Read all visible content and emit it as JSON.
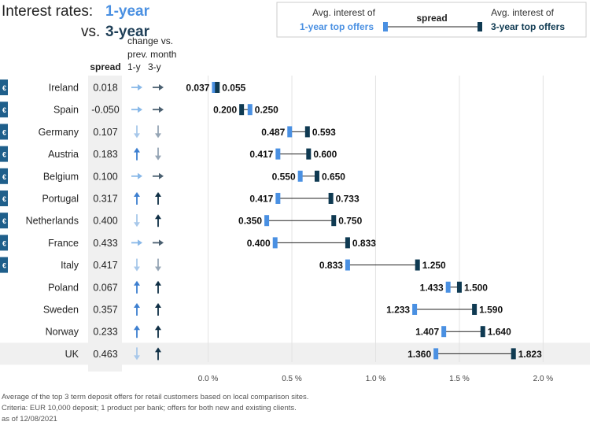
{
  "title": {
    "part1": "Interest rates: ",
    "part2": "1-year",
    "part3": "vs. ",
    "part4": "3-year"
  },
  "legend": {
    "left_line1": "Avg. interest of",
    "left_line2": "1-year top offers",
    "middle": "spread",
    "right_line1": "Avg. interest of",
    "right_line2": "3-year top offers"
  },
  "headers": {
    "spread": "spread",
    "change_line1": "change vs.",
    "change_line2": "prev. month",
    "col_1y": "1-y",
    "col_3y": "3-y"
  },
  "euro_symbol": "€",
  "colors": {
    "one_year": "#4a90e2",
    "three_year": "#0f3a52",
    "title_one_year": "#4a90e2",
    "title_three_year": "#1f3f57",
    "spread_col_bg": "#f0f0f0",
    "uk_row_bg": "#f0f0f0",
    "euro_badge": "#1f5f8b",
    "arrow_down": "#a8c8ea",
    "arrow_right_1y": "#88b8e8",
    "arrow_right_3y": "#4a5f70",
    "arrow_up_1y": "#3d7fd0",
    "arrow_up_3y": "#0f2f45",
    "arrow_down_3y": "#95a5b5",
    "spread_line": "#222222",
    "grid": "#e3e3e3"
  },
  "chart_data": {
    "type": "dumbbell",
    "xlim": [
      -0.012,
      2.2
    ],
    "ticks": [
      0.0,
      0.5,
      1.0,
      1.5,
      2.0
    ],
    "tick_labels": [
      "0.0 %",
      "0.5 %",
      "1.0 %",
      "1.5 %",
      "2.0 %"
    ],
    "series": [
      "1-year top offers",
      "3-year top offers"
    ],
    "rows": [
      {
        "country": "Ireland",
        "euro": true,
        "spread": "0.018",
        "one_year": 0.037,
        "three_year": 0.055,
        "one_year_label": "0.037",
        "three_year_label": "0.055",
        "change_1y": "right",
        "change_3y": "right"
      },
      {
        "country": "Spain",
        "euro": true,
        "spread": "-0.050",
        "one_year": 0.25,
        "three_year": 0.2,
        "one_year_label": "0.250",
        "three_year_label": "0.200",
        "change_1y": "right",
        "change_3y": "right"
      },
      {
        "country": "Germany",
        "euro": true,
        "spread": "0.107",
        "one_year": 0.487,
        "three_year": 0.593,
        "one_year_label": "0.487",
        "three_year_label": "0.593",
        "change_1y": "down",
        "change_3y": "down"
      },
      {
        "country": "Austria",
        "euro": true,
        "spread": "0.183",
        "one_year": 0.417,
        "three_year": 0.6,
        "one_year_label": "0.417",
        "three_year_label": "0.600",
        "change_1y": "up",
        "change_3y": "down"
      },
      {
        "country": "Belgium",
        "euro": true,
        "spread": "0.100",
        "one_year": 0.55,
        "three_year": 0.65,
        "one_year_label": "0.550",
        "three_year_label": "0.650",
        "change_1y": "right",
        "change_3y": "right"
      },
      {
        "country": "Portugal",
        "euro": true,
        "spread": "0.317",
        "one_year": 0.417,
        "three_year": 0.733,
        "one_year_label": "0.417",
        "three_year_label": "0.733",
        "change_1y": "up",
        "change_3y": "up"
      },
      {
        "country": "Netherlands",
        "euro": true,
        "spread": "0.400",
        "one_year": 0.35,
        "three_year": 0.75,
        "one_year_label": "0.350",
        "three_year_label": "0.750",
        "change_1y": "down",
        "change_3y": "up"
      },
      {
        "country": "France",
        "euro": true,
        "spread": "0.433",
        "one_year": 0.4,
        "three_year": 0.833,
        "one_year_label": "0.400",
        "three_year_label": "0.833",
        "change_1y": "right",
        "change_3y": "right"
      },
      {
        "country": "Italy",
        "euro": true,
        "spread": "0.417",
        "one_year": 0.833,
        "three_year": 1.25,
        "one_year_label": "0.833",
        "three_year_label": "1.250",
        "change_1y": "down",
        "change_3y": "down"
      },
      {
        "country": "Poland",
        "euro": false,
        "spread": "0.067",
        "one_year": 1.433,
        "three_year": 1.5,
        "one_year_label": "1.433",
        "three_year_label": "1.500",
        "change_1y": "up",
        "change_3y": "up"
      },
      {
        "country": "Sweden",
        "euro": false,
        "spread": "0.357",
        "one_year": 1.233,
        "three_year": 1.59,
        "one_year_label": "1.233",
        "three_year_label": "1.590",
        "change_1y": "up",
        "change_3y": "up"
      },
      {
        "country": "Norway",
        "euro": false,
        "spread": "0.233",
        "one_year": 1.407,
        "three_year": 1.64,
        "one_year_label": "1.407",
        "three_year_label": "1.640",
        "change_1y": "up",
        "change_3y": "up"
      },
      {
        "country": "UK",
        "euro": false,
        "spread": "0.463",
        "one_year": 1.36,
        "three_year": 1.823,
        "one_year_label": "1.360",
        "three_year_label": "1.823",
        "change_1y": "down",
        "change_3y": "up"
      }
    ]
  },
  "footnotes": [
    "Average of the top 3 term deposit offers for retail customers based on local comparison sites.",
    "Criteria: EUR 10,000 deposit; 1 product per bank; offers for both new and existing clients.",
    "as of 12/08/2021"
  ]
}
